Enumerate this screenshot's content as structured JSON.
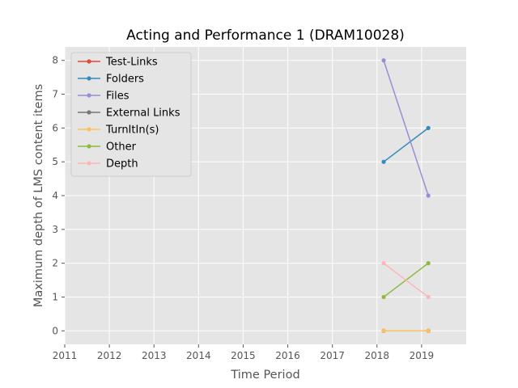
{
  "chart_data": {
    "type": "line",
    "title": "Acting and Performance 1 (DRAM10028)",
    "xlabel": "Time Period",
    "ylabel": "Maximum depth of LMS content items",
    "xlim": [
      2011,
      2020
    ],
    "ylim": [
      -0.4,
      8.4
    ],
    "xticks": [
      2011,
      2012,
      2013,
      2014,
      2015,
      2016,
      2017,
      2018,
      2019
    ],
    "yticks": [
      0,
      1,
      2,
      3,
      4,
      5,
      6,
      7,
      8
    ],
    "x": [
      2018.15,
      2019.15
    ],
    "grid": true,
    "legend": "upper-left",
    "series": [
      {
        "name": "Test-Links",
        "color": "#E24A33",
        "values": [
          0,
          0
        ]
      },
      {
        "name": "Folders",
        "color": "#348ABD",
        "values": [
          5,
          6
        ]
      },
      {
        "name": "Files",
        "color": "#988ED5",
        "values": [
          8,
          4
        ]
      },
      {
        "name": "External Links",
        "color": "#777777",
        "values": [
          0,
          0
        ]
      },
      {
        "name": "TurnItIn(s)",
        "color": "#FBC15E",
        "values": [
          0,
          0
        ]
      },
      {
        "name": "Other",
        "color": "#8EBA42",
        "values": [
          1,
          2
        ]
      },
      {
        "name": "Depth",
        "color": "#FFB5B8",
        "values": [
          2,
          1
        ]
      }
    ]
  }
}
